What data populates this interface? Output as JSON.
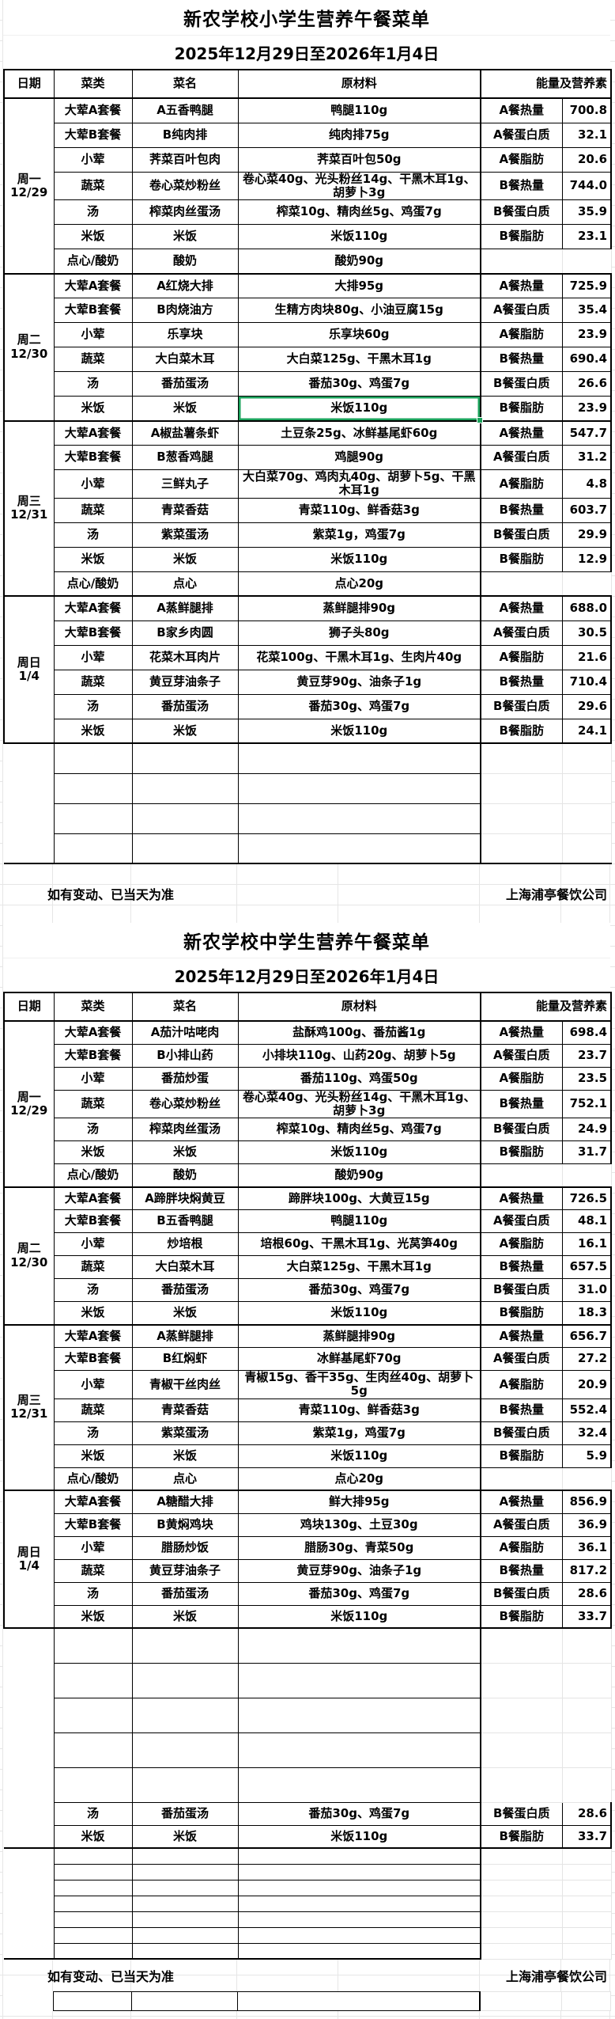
{
  "footer": {
    "note": "如有变动、已当天为准",
    "company": "上海浦亭餐饮公司"
  },
  "selection": {
    "table_index": 0,
    "day_index": 1,
    "row_index": 5,
    "column_index": 2,
    "color": "#1CA35C"
  },
  "tables": [
    {
      "title": "新农学校小学生营养午餐菜单",
      "date_range": "2025年12月29日至2026年1月4日",
      "columns": {
        "date": "日期",
        "category": "菜类",
        "dish": "菜名",
        "ingredients": "原材料",
        "energy": "能量及营养素"
      },
      "days": [
        {
          "label": "周一",
          "date": "12/29",
          "rows": [
            [
              "大荤A套餐",
              "A五香鸭腿",
              "鸭腿110g",
              "A餐热量",
              "700.8"
            ],
            [
              "大荤B套餐",
              "B纯肉排",
              "纯肉排75g",
              "A餐蛋白质",
              "32.1"
            ],
            [
              "小荤",
              "荠菜百叶包肉",
              "荠菜百叶包50g",
              "A餐脂肪",
              "20.6"
            ],
            [
              "蔬菜",
              "卷心菜炒粉丝",
              "卷心菜40g、光头粉丝14g、干黑木耳1g、胡萝卜3g",
              "B餐热量",
              "744.0"
            ],
            [
              "汤",
              "榨菜肉丝蛋汤",
              "榨菜10g、精肉丝5g、鸡蛋7g",
              "B餐蛋白质",
              "35.9"
            ],
            [
              "米饭",
              "米饭",
              "米饭110g",
              "B餐脂肪",
              "23.1"
            ],
            [
              "点心/酸奶",
              "酸奶",
              "酸奶90g",
              "",
              ""
            ]
          ]
        },
        {
          "label": "周二",
          "date": "12/30",
          "rows": [
            [
              "大荤A套餐",
              "A红烧大排",
              "大排95g",
              "A餐热量",
              "725.9"
            ],
            [
              "大荤B套餐",
              "B肉烧油方",
              "生精方肉块80g、小油豆腐15g",
              "A餐蛋白质",
              "35.4"
            ],
            [
              "小荤",
              "乐享块",
              "乐享块60g",
              "A餐脂肪",
              "23.9"
            ],
            [
              "蔬菜",
              "大白菜木耳",
              "大白菜125g、干黑木耳1g",
              "B餐热量",
              "690.4"
            ],
            [
              "汤",
              "番茄蛋汤",
              "番茄30g、鸡蛋7g",
              "B餐蛋白质",
              "26.6"
            ],
            [
              "米饭",
              "米饭",
              "米饭110g",
              "B餐脂肪",
              "23.9"
            ]
          ]
        },
        {
          "label": "周三",
          "date": "12/31",
          "rows": [
            [
              "大荤A套餐",
              "A椒盐薯条虾",
              "土豆条25g、冰鲜基尾虾60g",
              "A餐热量",
              "547.7"
            ],
            [
              "大荤B套餐",
              "B葱香鸡腿",
              "鸡腿90g",
              "A餐蛋白质",
              "31.2"
            ],
            [
              "小荤",
              "三鲜丸子",
              "大白菜70g、鸡肉丸40g、胡萝卜5g、干黑木耳1g",
              "A餐脂肪",
              "4.8"
            ],
            [
              "蔬菜",
              "青菜香菇",
              "青菜110g、鲜香菇3g",
              "B餐热量",
              "603.7"
            ],
            [
              "汤",
              "紫菜蛋汤",
              "紫菜1g，鸡蛋7g",
              "B餐蛋白质",
              "29.9"
            ],
            [
              "米饭",
              "米饭",
              "米饭110g",
              "B餐脂肪",
              "12.9"
            ],
            [
              "点心/酸奶",
              "点心",
              "点心20g",
              "",
              ""
            ]
          ]
        },
        {
          "label": "周日",
          "date": "1/4",
          "rows": [
            [
              "大荤A套餐",
              "A蒸鲜腿排",
              "蒸鲜腿排90g",
              "A餐热量",
              "688.0"
            ],
            [
              "大荤B套餐",
              "B家乡肉圆",
              "狮子头80g",
              "A餐蛋白质",
              "30.5"
            ],
            [
              "小荤",
              "花菜木耳肉片",
              "花菜100g、干黑木耳1g、生肉片40g",
              "A餐脂肪",
              "21.6"
            ],
            [
              "蔬菜",
              "黄豆芽油条子",
              "黄豆芽90g、油条子1g",
              "B餐热量",
              "710.4"
            ],
            [
              "汤",
              "番茄蛋汤",
              "番茄30g、鸡蛋7g",
              "B餐蛋白质",
              "29.6"
            ],
            [
              "米饭",
              "米饭",
              "米饭110g",
              "B餐脂肪",
              "24.1"
            ]
          ]
        }
      ],
      "trailing_empty_rows": 4
    },
    {
      "title": "新农学校中学生营养午餐菜单",
      "date_range": "2025年12月29日至2026年1月4日",
      "columns": {
        "date": "日期",
        "category": "菜类",
        "dish": "菜名",
        "ingredients": "原材料",
        "energy": "能量及营养素"
      },
      "days": [
        {
          "label": "周一",
          "date": "12/29",
          "rows": [
            [
              "大荤A套餐",
              "A茄汁咕咾肉",
              "盐酥鸡100g、番茄酱1g",
              "A餐热量",
              "698.4"
            ],
            [
              "大荤B套餐",
              "B小排山药",
              "小排块110g、山药20g、胡萝卜5g",
              "A餐蛋白质",
              "23.7"
            ],
            [
              "小荤",
              "番茄炒蛋",
              "番茄110g、鸡蛋50g",
              "A餐脂肪",
              "23.5"
            ],
            [
              "蔬菜",
              "卷心菜炒粉丝",
              "卷心菜40g、光头粉丝14g、干黑木耳1g、胡萝卜3g",
              "B餐热量",
              "752.1"
            ],
            [
              "汤",
              "榨菜肉丝蛋汤",
              "榨菜10g、精肉丝5g、鸡蛋7g",
              "B餐蛋白质",
              "24.9"
            ],
            [
              "米饭",
              "米饭",
              "米饭110g",
              "B餐脂肪",
              "31.7"
            ],
            [
              "点心/酸奶",
              "酸奶",
              "酸奶90g",
              "",
              ""
            ]
          ]
        },
        {
          "label": "周二",
          "date": "12/30",
          "rows": [
            [
              "大荤A套餐",
              "A蹄胖块焖黄豆",
              "蹄胖块100g、大黄豆15g",
              "A餐热量",
              "726.5"
            ],
            [
              "大荤B套餐",
              "B五香鸭腿",
              "鸭腿110g",
              "A餐蛋白质",
              "48.1"
            ],
            [
              "小荤",
              "炒培根",
              "培根60g、干黑木耳1g、光莴笋40g",
              "A餐脂肪",
              "16.1"
            ],
            [
              "蔬菜",
              "大白菜木耳",
              "大白菜125g、干黑木耳1g",
              "B餐热量",
              "657.5"
            ],
            [
              "汤",
              "番茄蛋汤",
              "番茄30g、鸡蛋7g",
              "B餐蛋白质",
              "31.0"
            ],
            [
              "米饭",
              "米饭",
              "米饭110g",
              "B餐脂肪",
              "18.3"
            ]
          ]
        },
        {
          "label": "周三",
          "date": "12/31",
          "rows": [
            [
              "大荤A套餐",
              "A蒸鲜腿排",
              "蒸鲜腿排90g",
              "A餐热量",
              "656.7"
            ],
            [
              "大荤B套餐",
              "B红焖虾",
              "冰鲜基尾虾70g",
              "A餐蛋白质",
              "27.2"
            ],
            [
              "小荤",
              "青椒干丝肉丝",
              "青椒15g、香干35g、生肉丝40g、胡萝卜5g",
              "A餐脂肪",
              "20.9",
              "small"
            ],
            [
              "蔬菜",
              "青菜香菇",
              "青菜110g、鲜香菇3g",
              "B餐热量",
              "552.4"
            ],
            [
              "汤",
              "紫菜蛋汤",
              "紫菜1g，鸡蛋7g",
              "B餐蛋白质",
              "32.4"
            ],
            [
              "米饭",
              "米饭",
              "米饭110g",
              "B餐脂肪",
              "5.9"
            ],
            [
              "点心/酸奶",
              "点心",
              "点心20g",
              "",
              ""
            ]
          ]
        },
        {
          "label": "周日",
          "date": "1/4",
          "rows": [
            [
              "大荤A套餐",
              "A糖醋大排",
              "鲜大排95g",
              "A餐热量",
              "856.9"
            ],
            [
              "大荤B套餐",
              "B黄焖鸡块",
              "鸡块130g、土豆30g",
              "A餐蛋白质",
              "36.9"
            ],
            [
              "小荤",
              "腊肠炒饭",
              "腊肠30g、青菜50g",
              "A餐脂肪",
              "36.1"
            ],
            [
              "蔬菜",
              "黄豆芽油条子",
              "黄豆芽90g、油条子1g",
              "B餐热量",
              "817.2"
            ],
            [
              "汤",
              "番茄蛋汤",
              "番茄30g、鸡蛋7g",
              "B餐蛋白质",
              "28.6"
            ],
            [
              "米饭",
              "米饭",
              "米饭110g",
              "B餐脂肪",
              "33.7"
            ]
          ]
        }
      ],
      "gap_empty_rows": 5,
      "extra_rows": [
        [
          "汤",
          "番茄蛋汤",
          "番茄30g、鸡蛋7g",
          "B餐蛋白质",
          "28.6"
        ],
        [
          "米饭",
          "米饭",
          "米饭110g",
          "B餐脂肪",
          "33.7"
        ]
      ],
      "trailing_empty_rows": 7
    }
  ]
}
